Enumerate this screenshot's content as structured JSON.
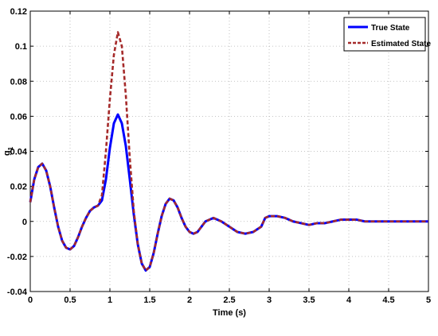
{
  "chart_data": {
    "type": "line",
    "title": "",
    "xlabel": "Time (s)",
    "ylabel": "g1",
    "xlim": [
      0,
      5
    ],
    "ylim": [
      -0.04,
      0.12
    ],
    "xticks": [
      0,
      0.5,
      1,
      1.5,
      2,
      2.5,
      3,
      3.5,
      4,
      4.5,
      5
    ],
    "yticks": [
      -0.04,
      -0.02,
      0,
      0.02,
      0.04,
      0.06,
      0.08,
      0.1,
      0.12
    ],
    "xtick_labels": [
      "0",
      "0.5",
      "1",
      "1.5",
      "2",
      "2.5",
      "3",
      "3.5",
      "4",
      "4.5",
      "5"
    ],
    "ytick_labels": [
      "-0.04",
      "-0.02",
      "0",
      "0.02",
      "0.04",
      "0.06",
      "0.08",
      "0.1",
      "0.12"
    ],
    "grid": true,
    "legend_position": "top-right",
    "series": [
      {
        "name": "True State",
        "color": "#0000ff",
        "style": "solid",
        "x": [
          0,
          0.05,
          0.1,
          0.15,
          0.2,
          0.25,
          0.3,
          0.35,
          0.4,
          0.45,
          0.5,
          0.55,
          0.6,
          0.65,
          0.7,
          0.75,
          0.8,
          0.85,
          0.9,
          0.95,
          1.0,
          1.05,
          1.1,
          1.15,
          1.2,
          1.25,
          1.3,
          1.35,
          1.4,
          1.45,
          1.5,
          1.55,
          1.6,
          1.65,
          1.7,
          1.75,
          1.8,
          1.85,
          1.9,
          1.95,
          2.0,
          2.05,
          2.1,
          2.15,
          2.2,
          2.3,
          2.4,
          2.5,
          2.6,
          2.7,
          2.8,
          2.9,
          2.95,
          3.0,
          3.1,
          3.2,
          3.3,
          3.4,
          3.5,
          3.6,
          3.7,
          3.8,
          3.9,
          4.0,
          4.1,
          4.2,
          4.3,
          4.4,
          4.5,
          4.6,
          4.7,
          4.8,
          4.9,
          5.0
        ],
        "y": [
          0.011,
          0.024,
          0.031,
          0.033,
          0.029,
          0.02,
          0.008,
          -0.003,
          -0.011,
          -0.015,
          -0.016,
          -0.014,
          -0.009,
          -0.003,
          0.002,
          0.006,
          0.008,
          0.009,
          0.012,
          0.024,
          0.042,
          0.056,
          0.061,
          0.056,
          0.043,
          0.024,
          0.004,
          -0.013,
          -0.024,
          -0.028,
          -0.026,
          -0.018,
          -0.007,
          0.003,
          0.01,
          0.013,
          0.012,
          0.008,
          0.002,
          -0.003,
          -0.006,
          -0.007,
          -0.006,
          -0.003,
          0.0,
          0.002,
          0.0,
          -0.003,
          -0.006,
          -0.007,
          -0.006,
          -0.003,
          0.002,
          0.003,
          0.003,
          0.002,
          0.0,
          -0.001,
          -0.002,
          -0.001,
          -0.001,
          0.0,
          0.001,
          0.001,
          0.001,
          0.0,
          0.0,
          0.0,
          0.0,
          0.0,
          0.0,
          0.0,
          0.0,
          0.0
        ]
      },
      {
        "name": "Estimated State",
        "color": "#a52a2a",
        "style": "dashed",
        "x": [
          0,
          0.05,
          0.1,
          0.15,
          0.2,
          0.25,
          0.3,
          0.35,
          0.4,
          0.45,
          0.5,
          0.55,
          0.6,
          0.65,
          0.7,
          0.75,
          0.8,
          0.85,
          0.9,
          0.95,
          1.0,
          1.05,
          1.1,
          1.15,
          1.2,
          1.25,
          1.3,
          1.35,
          1.4,
          1.45,
          1.5,
          1.55,
          1.6,
          1.65,
          1.7,
          1.75,
          1.8,
          1.85,
          1.9,
          1.95,
          2.0,
          2.05,
          2.1,
          2.15,
          2.2,
          2.3,
          2.4,
          2.5,
          2.6,
          2.7,
          2.8,
          2.9,
          2.95,
          3.0,
          3.1,
          3.2,
          3.3,
          3.4,
          3.5,
          3.6,
          3.7,
          3.8,
          3.9,
          4.0,
          4.1,
          4.2,
          4.3,
          4.4,
          4.5,
          4.6,
          4.7,
          4.8,
          4.9,
          5.0
        ],
        "y": [
          0.011,
          0.024,
          0.031,
          0.033,
          0.029,
          0.02,
          0.008,
          -0.003,
          -0.011,
          -0.015,
          -0.016,
          -0.014,
          -0.009,
          -0.003,
          0.002,
          0.006,
          0.008,
          0.009,
          0.015,
          0.04,
          0.07,
          0.095,
          0.108,
          0.1,
          0.072,
          0.036,
          0.006,
          -0.013,
          -0.024,
          -0.028,
          -0.026,
          -0.018,
          -0.007,
          0.003,
          0.01,
          0.013,
          0.012,
          0.008,
          0.002,
          -0.003,
          -0.006,
          -0.007,
          -0.006,
          -0.003,
          0.0,
          0.002,
          0.0,
          -0.003,
          -0.006,
          -0.007,
          -0.006,
          -0.003,
          0.002,
          0.003,
          0.003,
          0.002,
          0.0,
          -0.001,
          -0.002,
          -0.001,
          -0.001,
          0.0,
          0.001,
          0.001,
          0.001,
          0.0,
          0.0,
          0.0,
          0.0,
          0.0,
          0.0,
          0.0,
          0.0,
          0.0
        ]
      }
    ]
  }
}
